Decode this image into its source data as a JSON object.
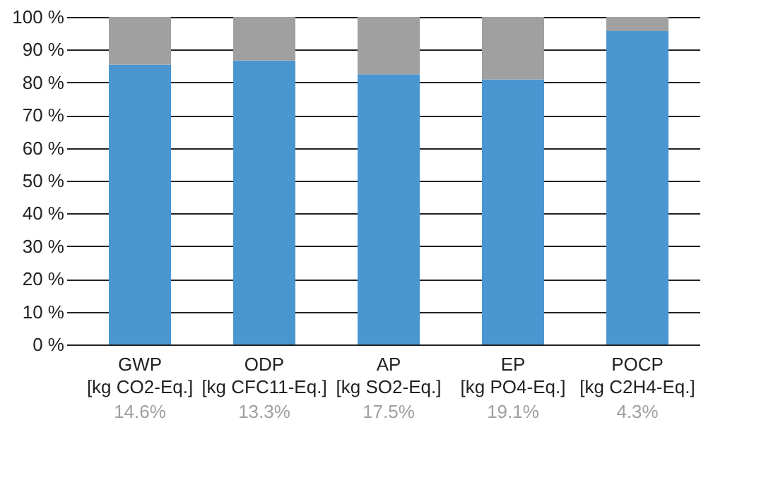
{
  "chart_data": {
    "type": "bar",
    "stacked": true,
    "categories": [
      "GWP\n[kg CO2-Eq.]",
      "ODP\n[kg CFC11-Eq.]",
      "AP\n[kg SO2-Eq.]",
      "EP\n[kg PO4-Eq.]",
      "POCP\n[kg C2H4-Eq.]"
    ],
    "series": [
      {
        "color": "#4a96d0",
        "values": [
          85.4,
          86.7,
          82.5,
          80.9,
          95.7
        ]
      },
      {
        "color": "#a0a0a0",
        "values": [
          14.6,
          13.3,
          17.5,
          19.1,
          4.3
        ],
        "value_labels": [
          "14.6%",
          "13.3%",
          "17.5%",
          "19.1%",
          "4.3%"
        ]
      }
    ],
    "ylim": [
      0,
      100
    ],
    "yticks": [
      {
        "value": 0,
        "label": "0 %"
      },
      {
        "value": 10,
        "label": "10 %"
      },
      {
        "value": 20,
        "label": "20 %"
      },
      {
        "value": 30,
        "label": "30 %"
      },
      {
        "value": 40,
        "label": "40 %"
      },
      {
        "value": 50,
        "label": "50 %"
      },
      {
        "value": 60,
        "label": "60 %"
      },
      {
        "value": 70,
        "label": "70 %"
      },
      {
        "value": 80,
        "label": "80 %"
      },
      {
        "value": 90,
        "label": "90 %"
      },
      {
        "value": 100,
        "label": "100 %"
      }
    ],
    "grid": "y"
  }
}
